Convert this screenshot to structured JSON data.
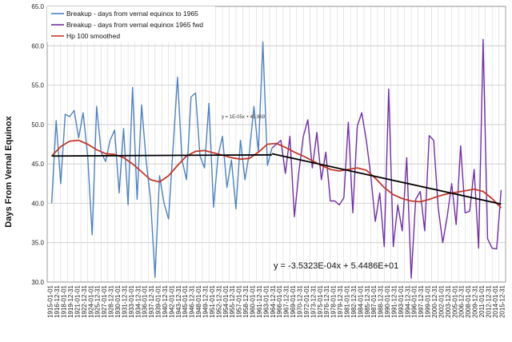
{
  "chart_data": {
    "type": "line",
    "ylabel": "Days From Vernal Equinox",
    "ylim": [
      30.0,
      65.0
    ],
    "yticks": [
      "30.0",
      "35.0",
      "40.0",
      "45.0",
      "50.0",
      "55.0",
      "60.0",
      "65.0"
    ],
    "xlim": [
      1915,
      2017
    ],
    "xticks": [
      "1915-01-01",
      "1916-12-31",
      "1918-01-01",
      "1919-12-31",
      "1921-01-01",
      "1922-12-31",
      "1924-01-01",
      "1925-12-31",
      "1927-01-01",
      "1928-12-31",
      "1930-01-01",
      "1931-12-31",
      "1933-01-01",
      "1934-12-31",
      "1936-01-01",
      "1937-12-31",
      "1939-01-01",
      "1940-12-31",
      "1942-01-01",
      "1943-12-31",
      "1945-01-01",
      "1946-12-31",
      "1948-01-01",
      "1949-12-31",
      "1951-01-01",
      "1952-12-31",
      "1954-01-01",
      "1955-12-31",
      "1957-01-01",
      "1958-12-31",
      "1960-01-01",
      "1961-12-31",
      "1963-01-01",
      "1964-12-31",
      "1966-01-01",
      "1967-12-31",
      "1969-01-01",
      "1970-12-31",
      "1972-01-01",
      "1973-12-31",
      "1975-01-01",
      "1976-12-31",
      "1978-01-01",
      "1979-12-31",
      "1981-01-01",
      "1982-12-31",
      "1984-01-01",
      "1985-12-31",
      "1987-01-01",
      "1988-12-31",
      "1990-01-01",
      "1991-12-31",
      "1993-01-01",
      "1994-12-31",
      "1996-01-01",
      "1997-12-31",
      "1999-01-01",
      "2000-12-31",
      "2002-01-01",
      "2003-12-31",
      "2005-01-01",
      "2006-12-31",
      "2008-01-01",
      "2009-12-31",
      "2011-01-01",
      "2012-12-31",
      "2014-01-01",
      "2015-12-31"
    ],
    "grid": true,
    "legend_position": "top-left",
    "series": [
      {
        "name": "Breakup - days from vernal equinox to 1965",
        "color": "#4f81bd",
        "x": [
          1916,
          1917,
          1918,
          1919,
          1920,
          1921,
          1922,
          1923,
          1924,
          1925,
          1926,
          1927,
          1928,
          1929,
          1930,
          1931,
          1932,
          1933,
          1934,
          1935,
          1936,
          1937,
          1938,
          1939,
          1940,
          1941,
          1942,
          1943,
          1944,
          1945,
          1946,
          1947,
          1948,
          1949,
          1950,
          1951,
          1952,
          1953,
          1954,
          1955,
          1956,
          1957,
          1958,
          1959,
          1960,
          1961,
          1962,
          1963,
          1964,
          1965
        ],
        "y": [
          40.0,
          50.5,
          42.5,
          51.3,
          51.0,
          51.8,
          48.3,
          51.5,
          46.0,
          36.0,
          52.3,
          46.5,
          45.3,
          48.0,
          49.3,
          41.3,
          49.5,
          39.8,
          54.7,
          40.5,
          52.5,
          45.5,
          40.5,
          30.6,
          43.5,
          40.0,
          38.0,
          47.0,
          56.0,
          45.5,
          43.0,
          53.5,
          54.0,
          46.0,
          44.5,
          52.7,
          39.5,
          46.0,
          48.5,
          42.0,
          45.5,
          39.3,
          48.0,
          43.0,
          46.5,
          52.3,
          46.5,
          60.5,
          44.8,
          47.0
        ]
      },
      {
        "name": "Breakup - days from vernal equinox 1965 fwd",
        "color": "#7030a0",
        "x": [
          1965,
          1966,
          1967,
          1968,
          1969,
          1970,
          1971,
          1972,
          1973,
          1974,
          1975,
          1976,
          1977,
          1978,
          1979,
          1980,
          1981,
          1982,
          1983,
          1984,
          1985,
          1986,
          1987,
          1988,
          1989,
          1990,
          1991,
          1992,
          1993,
          1994,
          1995,
          1996,
          1997,
          1998,
          1999,
          2000,
          2001,
          2002,
          2003,
          2004,
          2005,
          2006,
          2007,
          2008,
          2009,
          2010,
          2011,
          2012,
          2013,
          2014,
          2015,
          2016
        ],
        "y": [
          47.0,
          47.5,
          48.0,
          43.8,
          48.5,
          38.3,
          44.0,
          48.5,
          50.6,
          44.5,
          49.0,
          43.0,
          46.5,
          40.3,
          40.3,
          39.8,
          40.7,
          50.3,
          38.8,
          49.8,
          51.5,
          48.0,
          43.5,
          37.7,
          41.3,
          34.5,
          54.5,
          34.5,
          39.8,
          36.5,
          45.8,
          30.5,
          40.5,
          41.5,
          36.5,
          48.6,
          48.0,
          39.5,
          35.0,
          38.3,
          42.5,
          37.3,
          47.3,
          38.8,
          39.0,
          44.3,
          34.3,
          60.8,
          35.5,
          34.3,
          34.2,
          41.7
        ]
      },
      {
        "name": "Hp 100 smoothed",
        "color": "#c0392b",
        "x": [
          1916,
          1918,
          1920,
          1922,
          1924,
          1926,
          1928,
          1930,
          1932,
          1934,
          1936,
          1938,
          1940,
          1942,
          1944,
          1946,
          1948,
          1950,
          1952,
          1954,
          1956,
          1958,
          1960,
          1962,
          1964,
          1966,
          1968,
          1970,
          1972,
          1974,
          1976,
          1978,
          1980,
          1982,
          1984,
          1986,
          1988,
          1990,
          1992,
          1994,
          1996,
          1998,
          2000,
          2002,
          2004,
          2006,
          2008,
          2010,
          2012,
          2014,
          2016
        ],
        "y": [
          46.0,
          47.2,
          47.9,
          48.0,
          47.5,
          46.8,
          46.3,
          46.2,
          45.8,
          45.0,
          44.0,
          43.0,
          42.7,
          43.5,
          44.8,
          46.0,
          46.6,
          46.7,
          46.4,
          46.1,
          45.8,
          45.6,
          45.7,
          46.5,
          47.5,
          47.6,
          47.1,
          46.5,
          46.0,
          45.4,
          44.8,
          44.3,
          44.1,
          44.3,
          44.5,
          44.2,
          43.2,
          42.0,
          41.1,
          40.6,
          40.3,
          40.2,
          40.5,
          40.9,
          41.2,
          41.4,
          41.6,
          41.8,
          41.5,
          40.6,
          39.4
        ]
      }
    ],
    "trendlines": [
      {
        "x": [
          1916,
          1965
        ],
        "y": [
          46.0,
          46.15
        ],
        "color": "#000000"
      },
      {
        "x": [
          1965,
          2016
        ],
        "y": [
          46.3,
          39.9
        ],
        "color": "#000000"
      }
    ],
    "annotations": {
      "equation_large": "y = -3.5323E-04x + 5.4486E+01",
      "equation_small": "y = 1E-05x + 45.969"
    }
  }
}
